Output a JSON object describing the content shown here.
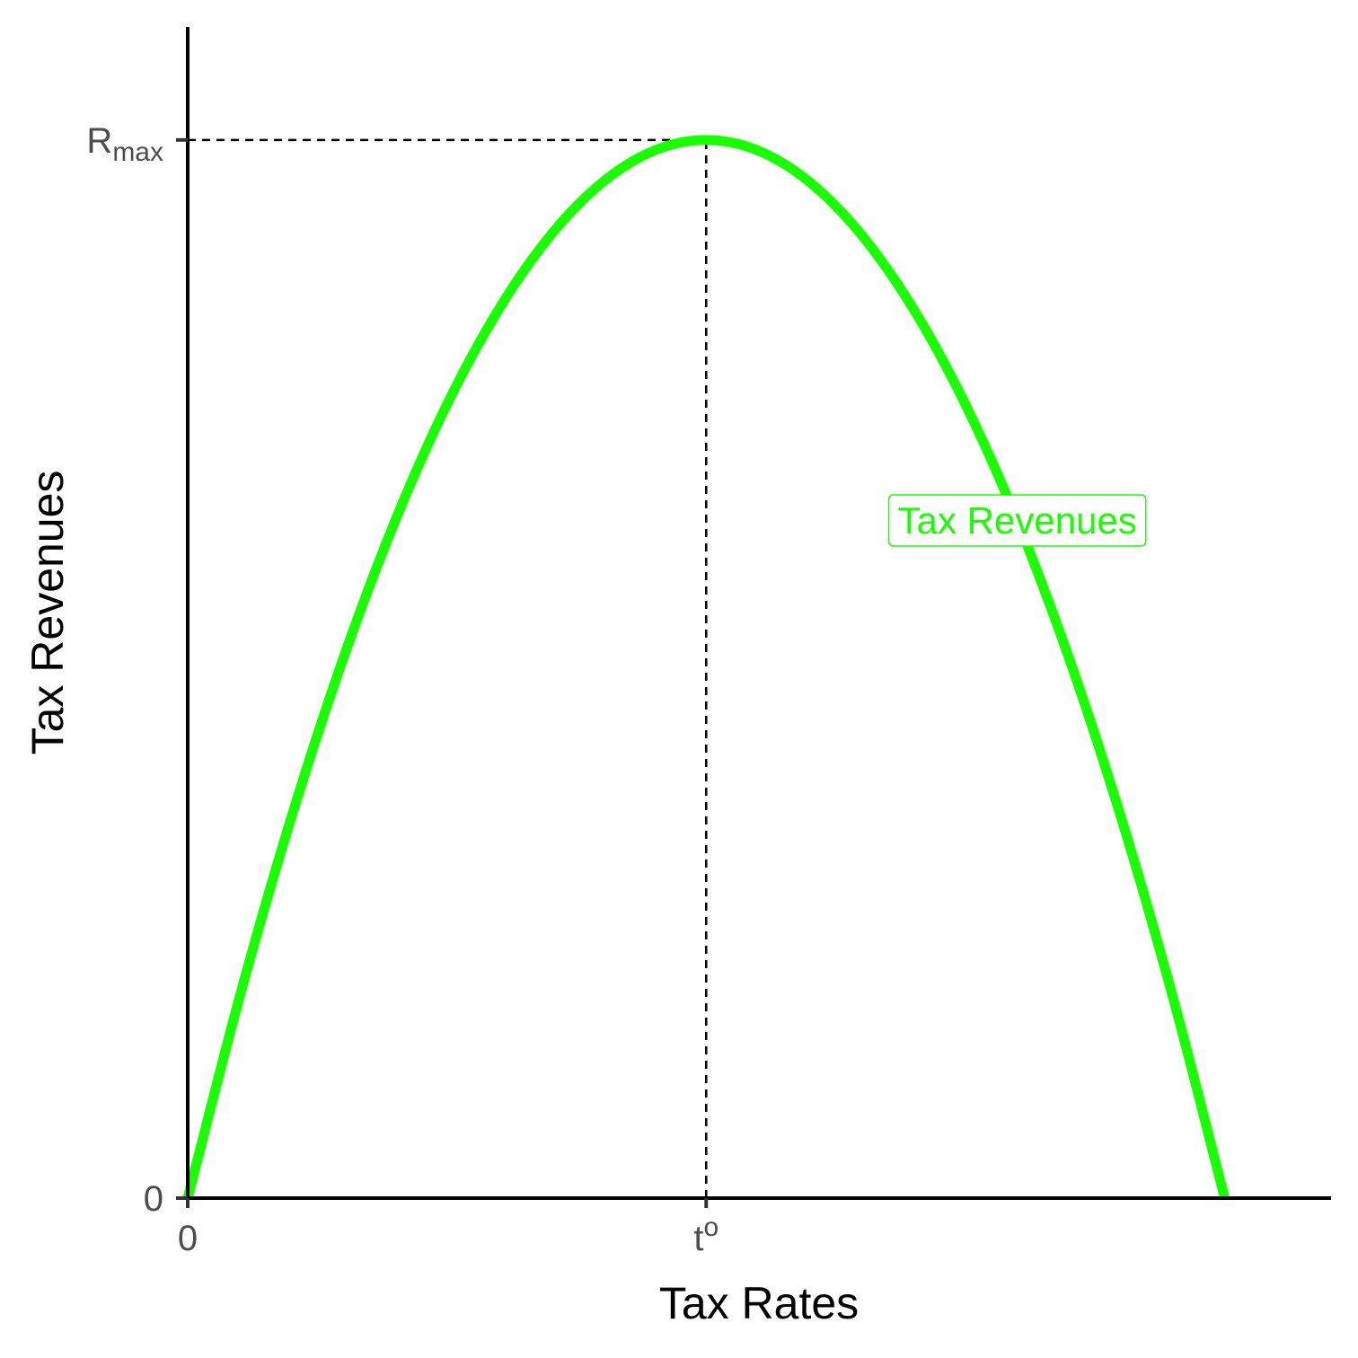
{
  "chart_data": {
    "type": "line",
    "title": "",
    "xlabel": "Tax Rates",
    "ylabel": "Tax Revenues",
    "xlim": [
      0,
      1.1
    ],
    "ylim": [
      0,
      1.1
    ],
    "grid": false,
    "legend": "none",
    "x_ticks": [
      {
        "value": 0,
        "label": "0",
        "sub": "",
        "sup": ""
      },
      {
        "value": 0.5,
        "label": "t",
        "sub": "",
        "sup": "o"
      }
    ],
    "y_ticks": [
      {
        "value": 0,
        "label": "0",
        "sub": ""
      },
      {
        "value": 1.0,
        "label": "R",
        "sub": "max"
      }
    ],
    "series": [
      {
        "label": "Tax Revenues",
        "color": "#1aff00",
        "x": [
          0,
          0.05,
          0.1,
          0.15,
          0.2,
          0.25,
          0.3,
          0.35,
          0.4,
          0.45,
          0.5,
          0.55,
          0.6,
          0.65,
          0.7,
          0.75,
          0.8,
          0.85,
          0.9,
          0.95,
          1.0
        ],
        "y": [
          0,
          0.19,
          0.36,
          0.51,
          0.64,
          0.75,
          0.84,
          0.91,
          0.96,
          0.99,
          1.0,
          0.99,
          0.96,
          0.91,
          0.84,
          0.75,
          0.64,
          0.51,
          0.36,
          0.19,
          0
        ],
        "label_at": {
          "x": 0.8,
          "y": 0.64
        }
      }
    ],
    "reference_lines": [
      {
        "kind": "horizontal",
        "y": 1.0,
        "from_x": 0,
        "to_x": 0.5,
        "style": "dashed"
      },
      {
        "kind": "vertical",
        "x": 0.5,
        "from_y": 0,
        "to_y": 1.0,
        "style": "dashed"
      }
    ]
  }
}
